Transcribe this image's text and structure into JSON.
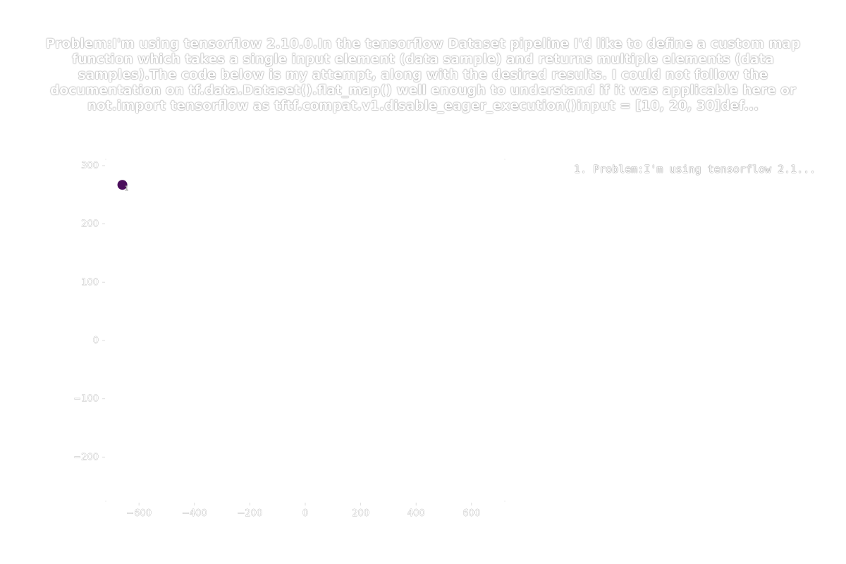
{
  "chart_data": {
    "type": "scatter",
    "title": "Problem:I'm using tensorflow 2.10.0.In the tensorflow Dataset pipeline I'd like to define a custom map function which takes a single input element (data sample) and returns multiple elements (data samples).The code below is my attempt, along with the desired results. I could not follow the documentation on tf.data.Dataset().flat_map() well enough to understand if it was applicable here or not.import tensorflow as tftf.compat.v1.disable_eager_execution()input = [10, 20, 30]def...",
    "xlim": [
      -720,
      720
    ],
    "ylim": [
      -277,
      312
    ],
    "xticks": [
      -600,
      -400,
      -200,
      0,
      200,
      400,
      600
    ],
    "yticks": [
      300,
      200,
      100,
      0,
      -100,
      -200
    ],
    "xtick_labels": [
      "−600",
      "−400",
      "−200",
      "0",
      "200",
      "400",
      "600"
    ],
    "ytick_labels": [
      "300",
      "200",
      "100",
      "0",
      "−100",
      "−200"
    ],
    "grid": false,
    "legend_position": "top-right, outside plot",
    "points": [
      {
        "x": -660,
        "y": 267,
        "label": "1",
        "color": "#4b0f5c"
      }
    ],
    "legend": [
      "1. Problem:I'm using tensorflow 2.1..."
    ]
  }
}
